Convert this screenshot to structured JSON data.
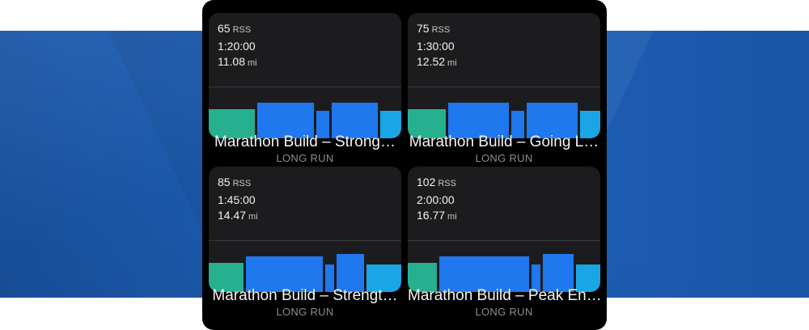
{
  "colors": {
    "warmup": "#26b08f",
    "main": "#1f78ee",
    "cooldown": "#1aa6e6",
    "banner": "#1c5bb0"
  },
  "workouts": [
    {
      "rss_value": "65",
      "rss_unit": "RSS",
      "duration": "1:20:00",
      "distance_value": "11.08",
      "distance_unit": "mi",
      "title": "Marathon Build – Strong…",
      "subtitle": "LONG RUN",
      "intensity_profile": [
        {
          "zone": "warmup",
          "duration_share": 0.25,
          "intensity": 0.55
        },
        {
          "zone": "main",
          "duration_share": 0.31,
          "intensity": 0.67
        },
        {
          "zone": "main",
          "duration_share": 0.07,
          "intensity": 0.52
        },
        {
          "zone": "main",
          "duration_share": 0.25,
          "intensity": 0.67
        },
        {
          "zone": "cooldown",
          "duration_share": 0.12,
          "intensity": 0.52
        }
      ]
    },
    {
      "rss_value": "75",
      "rss_unit": "RSS",
      "duration": "1:30:00",
      "distance_value": "12.52",
      "distance_unit": "mi",
      "title": "Marathon Build – Going L…",
      "subtitle": "LONG RUN",
      "intensity_profile": [
        {
          "zone": "warmup",
          "duration_share": 0.21,
          "intensity": 0.55
        },
        {
          "zone": "main",
          "duration_share": 0.33,
          "intensity": 0.67
        },
        {
          "zone": "main",
          "duration_share": 0.07,
          "intensity": 0.52
        },
        {
          "zone": "main",
          "duration_share": 0.28,
          "intensity": 0.67
        },
        {
          "zone": "cooldown",
          "duration_share": 0.11,
          "intensity": 0.52
        }
      ]
    },
    {
      "rss_value": "85",
      "rss_unit": "RSS",
      "duration": "1:45:00",
      "distance_value": "14.47",
      "distance_unit": "mi",
      "title": "Marathon Build – Strengt…",
      "subtitle": "LONG RUN",
      "intensity_profile": [
        {
          "zone": "warmup",
          "duration_share": 0.19,
          "intensity": 0.55
        },
        {
          "zone": "main",
          "duration_share": 0.42,
          "intensity": 0.67
        },
        {
          "zone": "main",
          "duration_share": 0.05,
          "intensity": 0.52
        },
        {
          "zone": "main",
          "duration_share": 0.15,
          "intensity": 0.72
        },
        {
          "zone": "cooldown",
          "duration_share": 0.19,
          "intensity": 0.52
        }
      ]
    },
    {
      "rss_value": "102",
      "rss_unit": "RSS",
      "duration": "2:00:00",
      "distance_value": "16.77",
      "distance_unit": "mi",
      "title": "Marathon Build – Peak En…",
      "subtitle": "LONG RUN",
      "intensity_profile": [
        {
          "zone": "warmup",
          "duration_share": 0.16,
          "intensity": 0.55
        },
        {
          "zone": "main",
          "duration_share": 0.49,
          "intensity": 0.67
        },
        {
          "zone": "main",
          "duration_share": 0.05,
          "intensity": 0.52
        },
        {
          "zone": "main",
          "duration_share": 0.17,
          "intensity": 0.72
        },
        {
          "zone": "cooldown",
          "duration_share": 0.13,
          "intensity": 0.52
        }
      ]
    }
  ]
}
